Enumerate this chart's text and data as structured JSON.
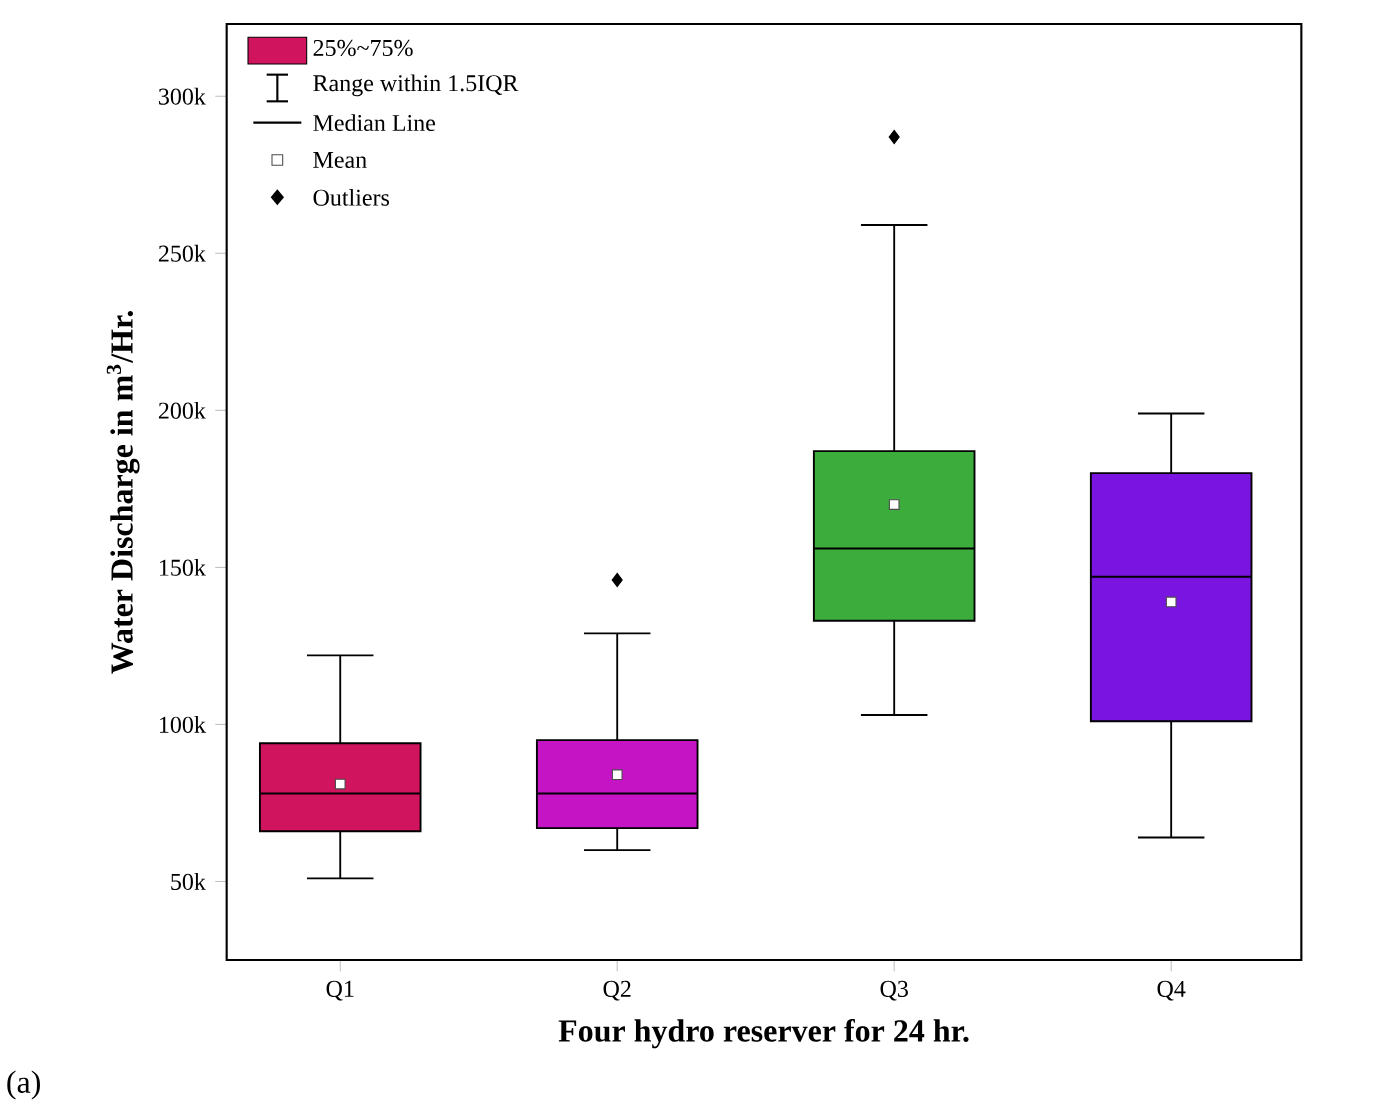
{
  "chart_data": {
    "type": "box",
    "xlabel": "Four hydro reserver for 24 hr.",
    "ylabel": "Water Discharge in m$^{3}$/Hr.",
    "categories": [
      "Q1",
      "Q2",
      "Q3",
      "Q4"
    ],
    "colors": [
      "#d0145e",
      "#c414c4",
      "#3cac3c",
      "#7a14e0"
    ],
    "boxes": [
      {
        "low": 51000,
        "q1": 66000,
        "median": 78000,
        "q3": 94000,
        "high": 122000,
        "mean": 81000
      },
      {
        "low": 60000,
        "q1": 67000,
        "median": 78000,
        "q3": 95000,
        "high": 129000,
        "mean": 84000,
        "outliers": [
          146000
        ]
      },
      {
        "low": 103000,
        "q1": 133000,
        "median": 156000,
        "q3": 187000,
        "high": 259000,
        "mean": 170000,
        "outliers": [
          287000
        ]
      },
      {
        "low": 64000,
        "q1": 101000,
        "median": 147000,
        "q3": 180000,
        "high": 199000,
        "mean": 139000
      }
    ],
    "ylim": [
      25000,
      323000
    ],
    "yticks": [
      {
        "value": 50000,
        "label": "50k"
      },
      {
        "value": 100000,
        "label": "100k"
      },
      {
        "value": 150000,
        "label": "150k"
      },
      {
        "value": 200000,
        "label": "200k"
      },
      {
        "value": 250000,
        "label": "250k"
      },
      {
        "value": 300000,
        "label": "300k"
      }
    ],
    "marker": "square",
    "annotations": [
      "25%~75%",
      "Range within 1.5IQR",
      "Median Line",
      "Mean",
      "Outliers",
      "(a)"
    ]
  }
}
